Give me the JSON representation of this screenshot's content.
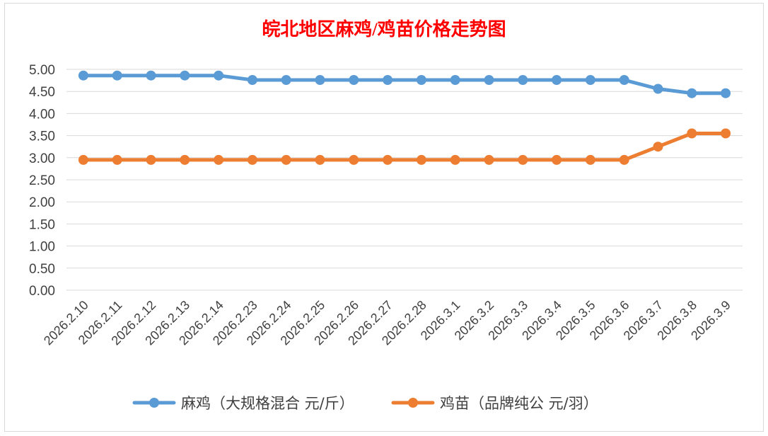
{
  "chart_data": {
    "type": "line",
    "title": "皖北地区麻鸡/鸡苗价格走势图",
    "title_color": "#ff0000",
    "xlabel": "",
    "ylabel": "",
    "categories": [
      "2026.2.10",
      "2026.2.11",
      "2026.2.12",
      "2026.2.13",
      "2026.2.14",
      "2026.2.23",
      "2026.2.24",
      "2026.2.25",
      "2026.2.26",
      "2026.2.27",
      "2026.2.28",
      "2026.3.1",
      "2026.3.2",
      "2026.3.3",
      "2026.3.4",
      "2026.3.5",
      "2026.3.6",
      "2026.3.7",
      "2026.3.8",
      "2026.3.9"
    ],
    "ylim": [
      0,
      5
    ],
    "yticks": [
      "0.00",
      "0.50",
      "1.00",
      "1.50",
      "2.00",
      "2.50",
      "3.00",
      "3.50",
      "4.00",
      "4.50",
      "5.00"
    ],
    "grid": true,
    "legend_position": "bottom",
    "series": [
      {
        "name": "麻鸡（大规格混合 元/斤）",
        "color": "#5b9bd5",
        "values": [
          4.86,
          4.86,
          4.86,
          4.86,
          4.86,
          4.76,
          4.76,
          4.76,
          4.76,
          4.76,
          4.76,
          4.76,
          4.76,
          4.76,
          4.76,
          4.76,
          4.76,
          4.56,
          4.46,
          4.46
        ]
      },
      {
        "name": "鸡苗（品牌纯公 元/羽）",
        "color": "#ed7d31",
        "values": [
          2.95,
          2.95,
          2.95,
          2.95,
          2.95,
          2.95,
          2.95,
          2.95,
          2.95,
          2.95,
          2.95,
          2.95,
          2.95,
          2.95,
          2.95,
          2.95,
          2.95,
          3.25,
          3.55,
          3.55
        ]
      }
    ]
  }
}
